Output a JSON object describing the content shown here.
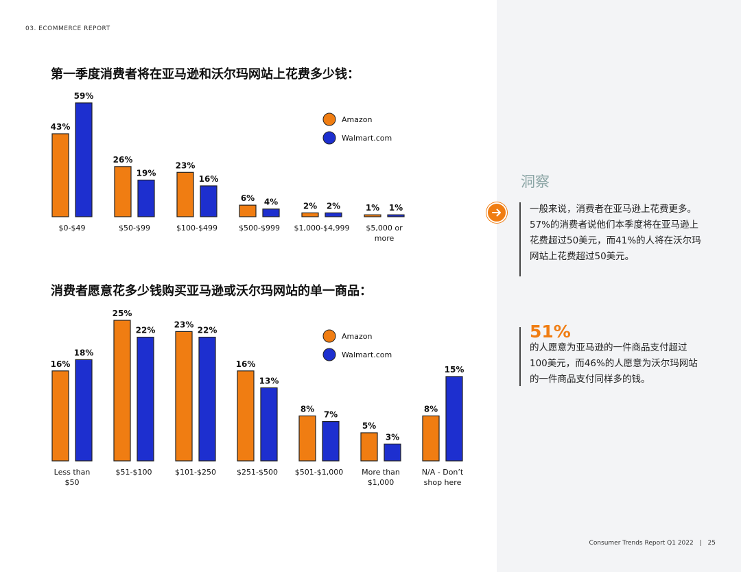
{
  "header": {
    "section": "03. ECOMMERCE REPORT"
  },
  "footer": {
    "report": "Consumer Trends Report Q1 2022",
    "separator": "|",
    "page": "25"
  },
  "colors": {
    "amazon": "#f07d12",
    "walmart": "#1d2fcf",
    "accent": "#f07d12",
    "sidebar_bg": "#f3f4f6"
  },
  "chart_data": [
    {
      "type": "bar",
      "title": "第一季度消费者将在亚马逊和沃尔玛网站上花费多少钱：",
      "categories": [
        "$0-$49",
        "$50-$99",
        "$100-$499",
        "$500-$999",
        "$1,000-$4,999",
        "$5,000 or more"
      ],
      "series": [
        {
          "name": "Amazon",
          "values": [
            43,
            26,
            23,
            6,
            2,
            1
          ]
        },
        {
          "name": "Walmart.com",
          "values": [
            59,
            19,
            16,
            4,
            2,
            1
          ]
        }
      ],
      "unit": "%",
      "legend": "top-right",
      "ylim": [
        0,
        59
      ]
    },
    {
      "type": "bar",
      "title": "消费者愿意花多少钱购买亚马逊或沃尔玛网站的单一商品：",
      "categories": [
        "Less than $50",
        "$51-$100",
        "$101-$250",
        "$251-$500",
        "$501-$1,000",
        "More than $1,000",
        "N/A - Don't shop here"
      ],
      "series": [
        {
          "name": "Amazon",
          "values": [
            16,
            25,
            23,
            16,
            8,
            5,
            8
          ]
        },
        {
          "name": "Walmart.com",
          "values": [
            18,
            22,
            22,
            13,
            7,
            3,
            15
          ]
        }
      ],
      "unit": "%",
      "legend": "top-right",
      "ylim": [
        0,
        25
      ]
    }
  ],
  "insights": {
    "title": "洞察",
    "icon": "arrow-right-icon",
    "text1": "一般来说，消费者在亚马逊上花费更多。57%的消费者说他们本季度将在亚马逊上花费超过50美元，而41%的人将在沃尔玛网站上花费超过50美元。",
    "stat": "51%",
    "text2": "的人愿意为亚马逊的一件商品支付超过100美元，而46%的人愿意为沃尔玛网站的一件商品支付同样多的钱。"
  }
}
